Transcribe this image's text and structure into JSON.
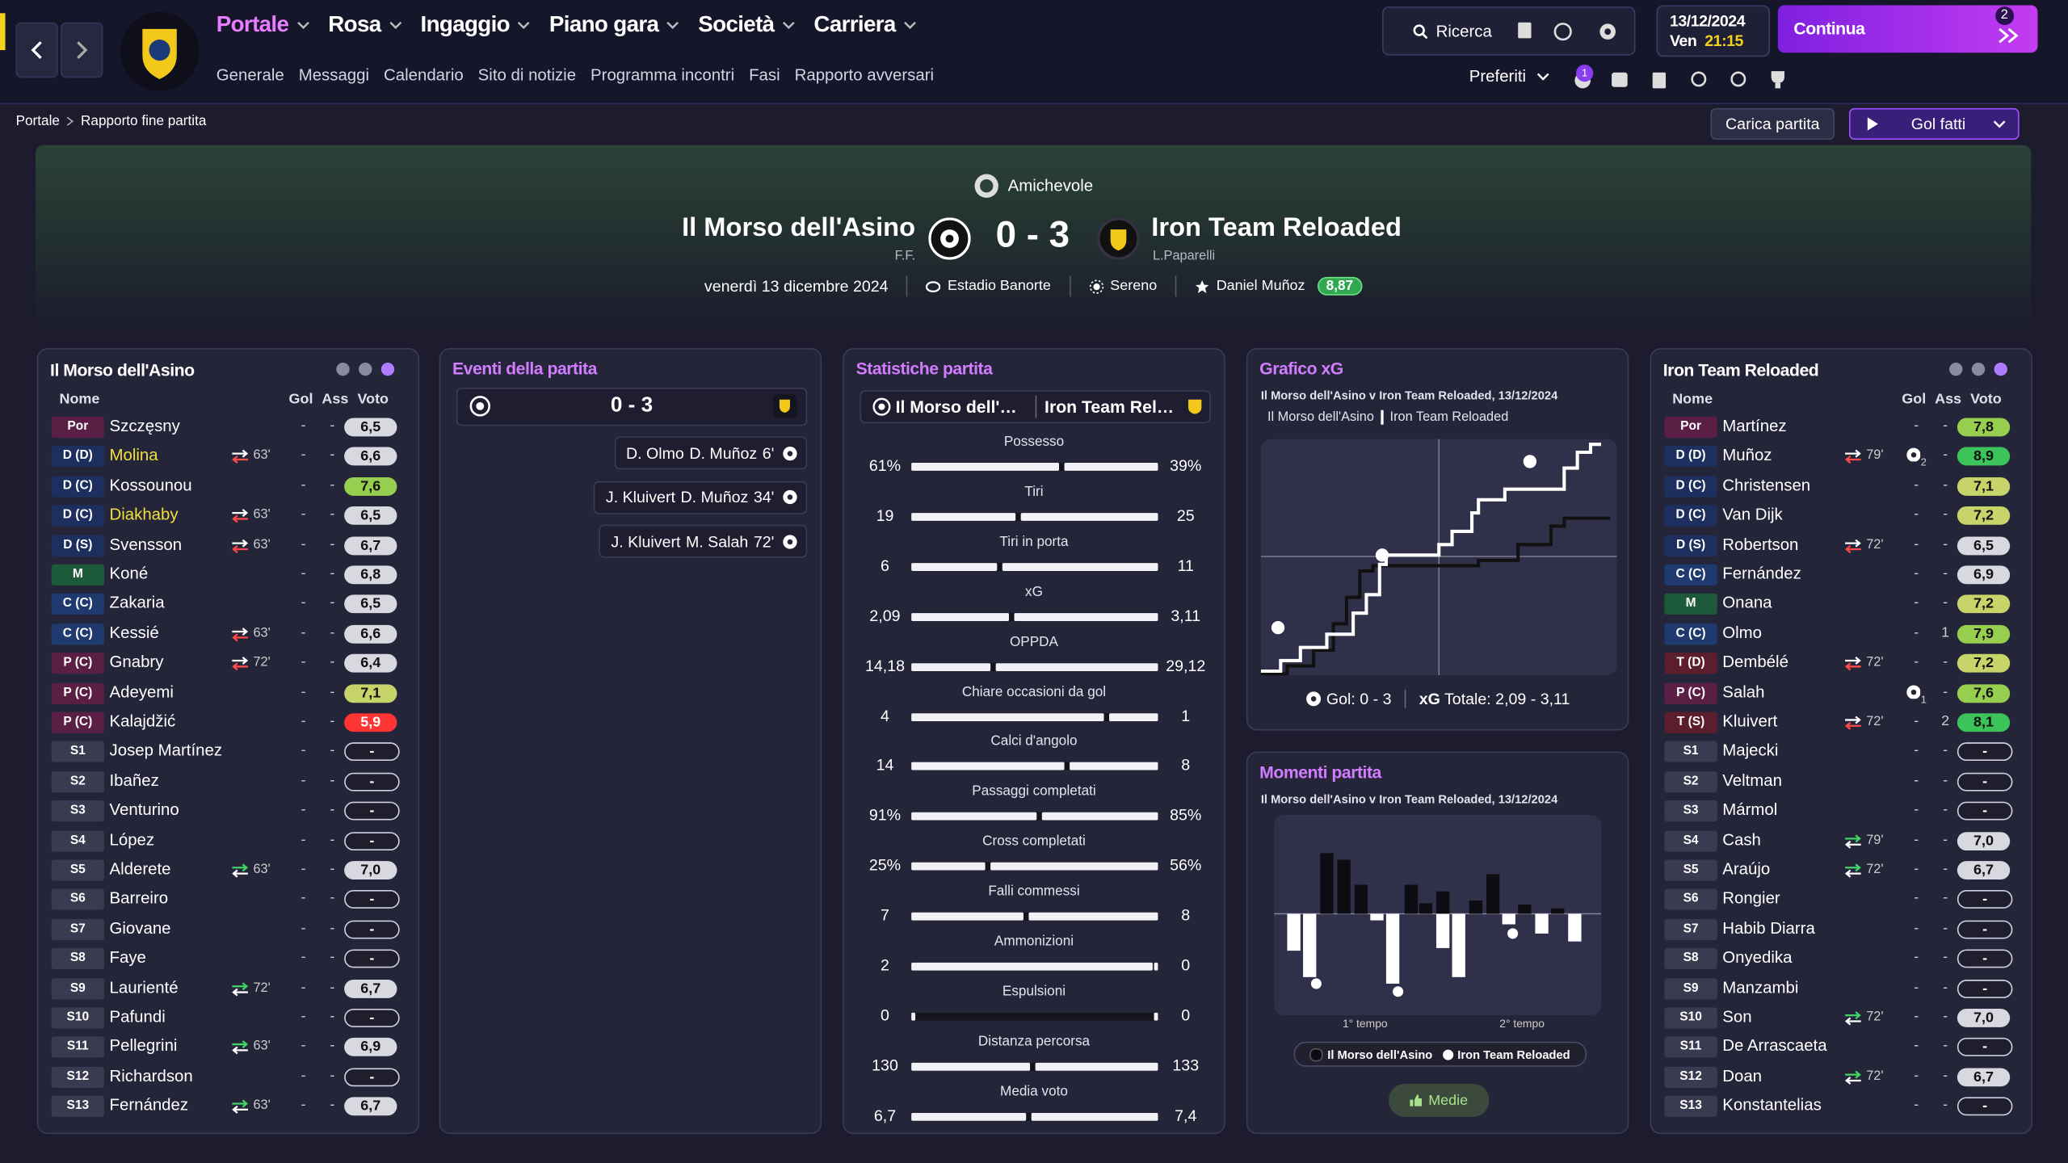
{
  "nav": {
    "tabs": [
      "Portale",
      "Rosa",
      "Ingaggio",
      "Piano gara",
      "Società",
      "Carriera"
    ],
    "subtabs": [
      "Generale",
      "Messaggi",
      "Calendario",
      "Sito di notizie",
      "Programma incontri",
      "Fasi",
      "Rapporto avversari"
    ],
    "search": "Ricerca",
    "date": "13/12/2024",
    "weekday": "Ven",
    "time": "21:15",
    "continue": "Continua",
    "inbox_count": "2",
    "favorites": "Preferiti",
    "notifications": "1"
  },
  "breadcrumb": {
    "root": "Portale",
    "current": "Rapporto fine partita"
  },
  "actions": {
    "load": "Carica partita",
    "goals": "Gol fatti"
  },
  "match": {
    "competition": "Amichevole",
    "home": "Il Morso dell'Asino",
    "home_manager": "F.F.",
    "away": "Iron Team Reloaded",
    "away_manager": "L.Paparelli",
    "score": "0 - 3",
    "date": "venerdì 13 dicembre 2024",
    "stadium": "Estadio Banorte",
    "weather": "Sereno",
    "motm": "Daniel Muñoz",
    "motm_rating": "8,87"
  },
  "columns": [
    "Nome",
    "Gol",
    "Ass",
    "Voto"
  ],
  "home_squad": [
    {
      "pos": "Por",
      "name": "Szczęsny",
      "gol": "-",
      "ass": "-",
      "voto": "6,5"
    },
    {
      "pos": "D (D)",
      "name": "Molina",
      "sub": "63'",
      "sub_type": "out",
      "highlight": true,
      "gol": "-",
      "ass": "-",
      "voto": "6,6"
    },
    {
      "pos": "D (C)",
      "name": "Kossounou",
      "gol": "-",
      "ass": "-",
      "voto": "7,6"
    },
    {
      "pos": "D (C)",
      "name": "Diakhaby",
      "sub": "63'",
      "sub_type": "out",
      "highlight": true,
      "gol": "-",
      "ass": "-",
      "voto": "6,5"
    },
    {
      "pos": "D (S)",
      "name": "Svensson",
      "sub": "63'",
      "sub_type": "out",
      "gol": "-",
      "ass": "-",
      "voto": "6,7"
    },
    {
      "pos": "M",
      "name": "Koné",
      "gol": "-",
      "ass": "-",
      "voto": "6,8"
    },
    {
      "pos": "C (C)",
      "name": "Zakaria",
      "gol": "-",
      "ass": "-",
      "voto": "6,5"
    },
    {
      "pos": "C (C)",
      "name": "Kessié",
      "sub": "63'",
      "sub_type": "out",
      "gol": "-",
      "ass": "-",
      "voto": "6,6"
    },
    {
      "pos": "P (C)",
      "name": "Gnabry",
      "sub": "72'",
      "sub_type": "out",
      "gol": "-",
      "ass": "-",
      "voto": "6,4"
    },
    {
      "pos": "P (C)",
      "name": "Adeyemi",
      "gol": "-",
      "ass": "-",
      "voto": "7,1"
    },
    {
      "pos": "P (C)",
      "name": "Kalajdžić",
      "gol": "-",
      "ass": "-",
      "voto": "5,9"
    },
    {
      "pos": "S1",
      "name": "Josep Martínez",
      "gol": "-",
      "ass": "-",
      "voto": "-"
    },
    {
      "pos": "S2",
      "name": "Ibañez",
      "gol": "-",
      "ass": "-",
      "voto": "-"
    },
    {
      "pos": "S3",
      "name": "Venturino",
      "gol": "-",
      "ass": "-",
      "voto": "-"
    },
    {
      "pos": "S4",
      "name": "López",
      "gol": "-",
      "ass": "-",
      "voto": "-"
    },
    {
      "pos": "S5",
      "name": "Alderete",
      "sub": "63'",
      "sub_type": "in",
      "gol": "-",
      "ass": "-",
      "voto": "7,0"
    },
    {
      "pos": "S6",
      "name": "Barreiro",
      "gol": "-",
      "ass": "-",
      "voto": "-"
    },
    {
      "pos": "S7",
      "name": "Giovane",
      "gol": "-",
      "ass": "-",
      "voto": "-"
    },
    {
      "pos": "S8",
      "name": "Faye",
      "gol": "-",
      "ass": "-",
      "voto": "-"
    },
    {
      "pos": "S9",
      "name": "Laurienté",
      "sub": "72'",
      "sub_type": "in",
      "gol": "-",
      "ass": "-",
      "voto": "6,7"
    },
    {
      "pos": "S10",
      "name": "Pafundi",
      "gol": "-",
      "ass": "-",
      "voto": "-"
    },
    {
      "pos": "S11",
      "name": "Pellegrini",
      "sub": "63'",
      "sub_type": "in",
      "gol": "-",
      "ass": "-",
      "voto": "6,9"
    },
    {
      "pos": "S12",
      "name": "Richardson",
      "gol": "-",
      "ass": "-",
      "voto": "-"
    },
    {
      "pos": "S13",
      "name": "Fernández",
      "sub": "63'",
      "sub_type": "in",
      "gol": "-",
      "ass": "-",
      "voto": "6,7"
    }
  ],
  "away_squad": [
    {
      "pos": "Por",
      "name": "Martínez",
      "gol": "-",
      "ass": "-",
      "voto": "7,8"
    },
    {
      "pos": "D (D)",
      "name": "Muñoz",
      "sub": "79'",
      "sub_type": "out",
      "gol": "2",
      "ass": "-",
      "voto": "8,9"
    },
    {
      "pos": "D (C)",
      "name": "Christensen",
      "gol": "-",
      "ass": "-",
      "voto": "7,1"
    },
    {
      "pos": "D (C)",
      "name": "Van Dijk",
      "gol": "-",
      "ass": "-",
      "voto": "7,2"
    },
    {
      "pos": "D (S)",
      "name": "Robertson",
      "sub": "72'",
      "sub_type": "out",
      "gol": "-",
      "ass": "-",
      "voto": "6,5"
    },
    {
      "pos": "C (C)",
      "name": "Fernández",
      "gol": "-",
      "ass": "-",
      "voto": "6,9"
    },
    {
      "pos": "M",
      "name": "Onana",
      "gol": "-",
      "ass": "-",
      "voto": "7,2"
    },
    {
      "pos": "C (C)",
      "name": "Olmo",
      "gol": "-",
      "ass": "1",
      "voto": "7,9"
    },
    {
      "pos": "T (D)",
      "name": "Dembélé",
      "sub": "72'",
      "sub_type": "out",
      "gol": "-",
      "ass": "-",
      "voto": "7,2"
    },
    {
      "pos": "P (C)",
      "name": "Salah",
      "gol": "1",
      "ass": "-",
      "voto": "7,6"
    },
    {
      "pos": "T (S)",
      "name": "Kluivert",
      "sub": "72'",
      "sub_type": "out",
      "gol": "-",
      "ass": "2",
      "voto": "8,1"
    },
    {
      "pos": "S1",
      "name": "Majecki",
      "gol": "-",
      "ass": "-",
      "voto": "-"
    },
    {
      "pos": "S2",
      "name": "Veltman",
      "gol": "-",
      "ass": "-",
      "voto": "-"
    },
    {
      "pos": "S3",
      "name": "Mármol",
      "gol": "-",
      "ass": "-",
      "voto": "-"
    },
    {
      "pos": "S4",
      "name": "Cash",
      "sub": "79'",
      "sub_type": "in",
      "gol": "-",
      "ass": "-",
      "voto": "7,0"
    },
    {
      "pos": "S5",
      "name": "Araújo",
      "sub": "72'",
      "sub_type": "in",
      "gol": "-",
      "ass": "-",
      "voto": "6,7"
    },
    {
      "pos": "S6",
      "name": "Rongier",
      "gol": "-",
      "ass": "-",
      "voto": "-"
    },
    {
      "pos": "S7",
      "name": "Habib Diarra",
      "gol": "-",
      "ass": "-",
      "voto": "-"
    },
    {
      "pos": "S8",
      "name": "Onyedika",
      "gol": "-",
      "ass": "-",
      "voto": "-"
    },
    {
      "pos": "S9",
      "name": "Manzambi",
      "gol": "-",
      "ass": "-",
      "voto": "-"
    },
    {
      "pos": "S10",
      "name": "Son",
      "sub": "72'",
      "sub_type": "in",
      "gol": "-",
      "ass": "-",
      "voto": "7,0"
    },
    {
      "pos": "S11",
      "name": "De Arrascaeta",
      "gol": "-",
      "ass": "-",
      "voto": "-"
    },
    {
      "pos": "S12",
      "name": "Doan",
      "sub": "72'",
      "sub_type": "in",
      "gol": "-",
      "ass": "-",
      "voto": "6,7"
    },
    {
      "pos": "S13",
      "name": "Konstantelias",
      "gol": "-",
      "ass": "-",
      "voto": "-"
    }
  ],
  "events": {
    "title": "Eventi della partita",
    "list": [
      {
        "assist": "D. Olmo",
        "scorer": "D. Muñoz",
        "minute": "6'"
      },
      {
        "assist": "J. Kluivert",
        "scorer": "D. Muñoz",
        "minute": "34'"
      },
      {
        "assist": "J. Kluivert",
        "scorer": "M. Salah",
        "minute": "72'"
      }
    ]
  },
  "stats": {
    "title": "Statistiche partita",
    "rows": [
      {
        "label": "Possesso",
        "home": "61%",
        "away": "39%"
      },
      {
        "label": "Tiri",
        "home": "19",
        "away": "25"
      },
      {
        "label": "Tiri in porta",
        "home": "6",
        "away": "11"
      },
      {
        "label": "xG",
        "home": "2,09",
        "away": "3,11"
      },
      {
        "label": "OPPDA",
        "home": "14,18",
        "away": "29,12"
      },
      {
        "label": "Chiare occasioni da gol",
        "home": "4",
        "away": "1"
      },
      {
        "label": "Calci d'angolo",
        "home": "14",
        "away": "8"
      },
      {
        "label": "Passaggi completati",
        "home": "91%",
        "away": "85%"
      },
      {
        "label": "Cross completati",
        "home": "25%",
        "away": "56%"
      },
      {
        "label": "Falli commessi",
        "home": "7",
        "away": "8"
      },
      {
        "label": "Ammonizioni",
        "home": "2",
        "away": "0"
      },
      {
        "label": "Espulsioni",
        "home": "0",
        "away": "0"
      },
      {
        "label": "Distanza percorsa",
        "home": "130",
        "away": "133"
      },
      {
        "label": "Media voto",
        "home": "6,7",
        "away": "7,4"
      }
    ]
  },
  "xg_chart": {
    "title": "Grafico xG",
    "subtitle": "Il Morso dell'Asino v Iron Team Reloaded, 13/12/2024",
    "goals": "Gol: 0 - 3",
    "total_label": "xG",
    "total": "Totale: 2,09 - 3,11"
  },
  "momentum": {
    "title": "Momenti partita",
    "subtitle": "Il Morso dell'Asino v Iron Team Reloaded, 13/12/2024",
    "halves": [
      "1° tempo",
      "2° tempo"
    ],
    "button": "Medie"
  }
}
